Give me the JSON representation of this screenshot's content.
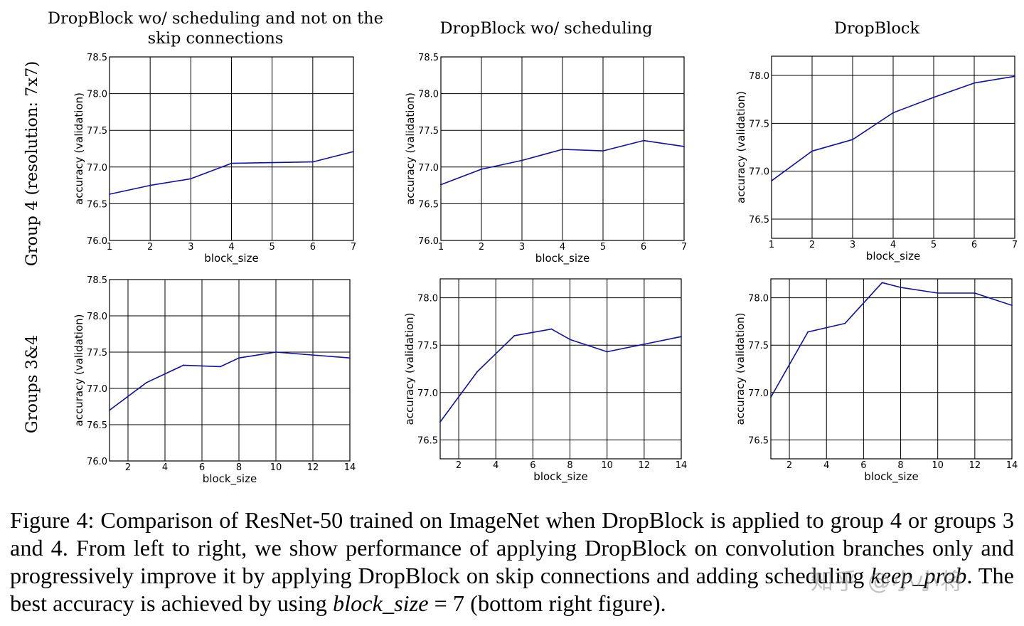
{
  "column_titles": [
    [
      "DropBlock wo/ scheduling and not on the",
      "skip connections"
    ],
    [
      "DropBlock wo/ scheduling"
    ],
    [
      "DropBlock"
    ]
  ],
  "row_titles": [
    "Group 4 (resolution: 7x7)",
    "Groups 3&4"
  ],
  "caption": {
    "part1": "Figure 4: Comparison of ResNet-50 trained on ImageNet when DropBlock is applied to group 4 or groups 3 and 4. From left to right, we show performance of applying DropBlock on convolution branches only and progressively improve it by applying DropBlock on skip connections and adding scheduling ",
    "keep_prob": "keep_prob",
    "part2": ". The best accuracy is achieved by using ",
    "block_size": "block_size",
    "part3": " = 7 (bottom right figure)."
  },
  "watermark": "知乎 @小小将",
  "colors": {
    "line": "#1010a8",
    "grid": "#000000"
  },
  "chart_data": [
    {
      "type": "line",
      "row": 0,
      "col": 0,
      "xlabel": "block_size",
      "ylabel": "accuracy (validation)",
      "xlim": [
        1,
        7
      ],
      "ylim": [
        76.0,
        78.5
      ],
      "xticks": [
        1,
        2,
        3,
        4,
        5,
        6,
        7
      ],
      "yticks": [
        76.0,
        76.5,
        77.0,
        77.5,
        78.0,
        78.5
      ],
      "ytick_labels": [
        "76.0",
        "76.5",
        "77.0",
        "77.5",
        "78.0",
        "78.5"
      ],
      "x": [
        1,
        2,
        3,
        4,
        5,
        6,
        7
      ],
      "y": [
        76.63,
        76.75,
        76.84,
        77.05,
        77.06,
        77.07,
        77.21
      ],
      "grid": true
    },
    {
      "type": "line",
      "row": 0,
      "col": 1,
      "xlabel": "block_size",
      "ylabel": "accuracy (validation)",
      "xlim": [
        1,
        7
      ],
      "ylim": [
        76.0,
        78.5
      ],
      "xticks": [
        1,
        2,
        3,
        4,
        5,
        6,
        7
      ],
      "yticks": [
        76.0,
        76.5,
        77.0,
        77.5,
        78.0,
        78.5
      ],
      "ytick_labels": [
        "76.0",
        "76.5",
        "77.0",
        "77.5",
        "78.0",
        "78.5"
      ],
      "x": [
        1,
        2,
        3,
        4,
        5,
        6,
        7
      ],
      "y": [
        76.76,
        76.97,
        77.09,
        77.24,
        77.22,
        77.36,
        77.28
      ],
      "grid": true
    },
    {
      "type": "line",
      "row": 0,
      "col": 2,
      "xlabel": "block_size",
      "ylabel": "accuracy (validation)",
      "xlim": [
        1,
        7
      ],
      "ylim": [
        76.3,
        78.2
      ],
      "xticks": [
        1,
        2,
        3,
        4,
        5,
        6,
        7
      ],
      "yticks": [
        76.5,
        77.0,
        77.5,
        78.0
      ],
      "ytick_labels": [
        "76.5",
        "77.0",
        "77.5",
        "78.0"
      ],
      "x": [
        1,
        2,
        3,
        4,
        5,
        6,
        7
      ],
      "y": [
        76.9,
        77.21,
        77.33,
        77.61,
        77.77,
        77.92,
        77.99
      ],
      "grid": true
    },
    {
      "type": "line",
      "row": 1,
      "col": 0,
      "xlabel": "block_size",
      "ylabel": "accuracy (validation)",
      "xlim": [
        1,
        14
      ],
      "ylim": [
        76.0,
        78.5
      ],
      "xticks": [
        2,
        4,
        6,
        8,
        10,
        12,
        14
      ],
      "yticks": [
        76.0,
        76.5,
        77.0,
        77.5,
        78.0,
        78.5
      ],
      "ytick_labels": [
        "76.0",
        "76.5",
        "77.0",
        "77.5",
        "78.0",
        "78.5"
      ],
      "x": [
        1,
        3,
        5,
        7,
        8,
        10,
        14
      ],
      "y": [
        76.7,
        77.08,
        77.32,
        77.3,
        77.42,
        77.5,
        77.42
      ],
      "grid": true
    },
    {
      "type": "line",
      "row": 1,
      "col": 1,
      "xlabel": "block_size",
      "ylabel": "accuracy (validation)",
      "xlim": [
        1,
        14
      ],
      "ylim": [
        76.3,
        78.2
      ],
      "xticks": [
        2,
        4,
        6,
        8,
        10,
        12,
        14
      ],
      "yticks": [
        76.5,
        77.0,
        77.5,
        78.0
      ],
      "ytick_labels": [
        "76.5",
        "77.0",
        "77.5",
        "78.0"
      ],
      "x": [
        1,
        3,
        5,
        7,
        8,
        10,
        12,
        14
      ],
      "y": [
        76.69,
        77.22,
        77.6,
        77.67,
        77.56,
        77.43,
        77.51,
        77.59
      ],
      "grid": true
    },
    {
      "type": "line",
      "row": 1,
      "col": 2,
      "xlabel": "block_size",
      "ylabel": "accuracy (validation)",
      "xlim": [
        1,
        14
      ],
      "ylim": [
        76.3,
        78.2
      ],
      "xticks": [
        2,
        4,
        6,
        8,
        10,
        12,
        14
      ],
      "yticks": [
        76.5,
        77.0,
        77.5,
        78.0
      ],
      "ytick_labels": [
        "76.5",
        "77.0",
        "77.5",
        "78.0"
      ],
      "x": [
        1,
        3,
        5,
        7,
        8,
        10,
        12,
        14
      ],
      "y": [
        76.95,
        77.64,
        77.73,
        78.16,
        78.11,
        78.05,
        78.05,
        77.92
      ],
      "grid": true
    }
  ]
}
